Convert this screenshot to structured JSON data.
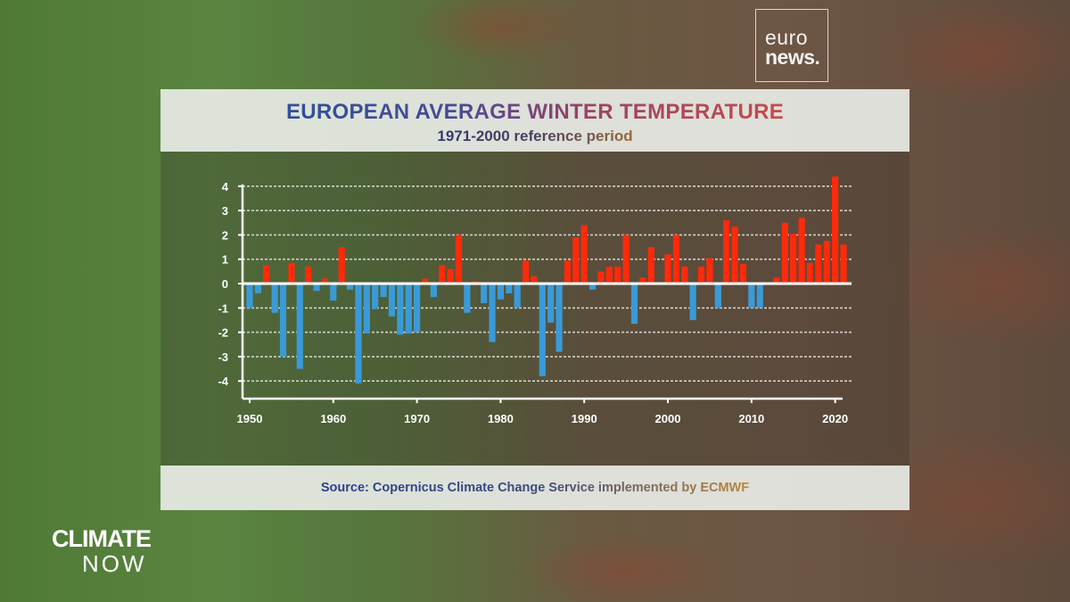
{
  "branding": {
    "network_logo": "euronews.",
    "network_logo_line1": "euro",
    "network_logo_line2": "news.",
    "show_logo_line1": "CLIMATE",
    "show_logo_line2": "NOW"
  },
  "header": {
    "title": "EUROPEAN AVERAGE WINTER TEMPERATURE",
    "subtitle": "1971-2000 reference period"
  },
  "footer": {
    "source": "Source: Copernicus Climate Change Service implemented by ECMWF"
  },
  "colors": {
    "positive": "#ff2a0a",
    "negative": "#3a9ad8",
    "grid": "#e6e6e6"
  },
  "chart_data": {
    "type": "bar",
    "title": "EUROPEAN AVERAGE WINTER TEMPERATURE",
    "subtitle": "1971-2000 reference period",
    "xlabel": "",
    "ylabel": "",
    "ylim": [
      -4.5,
      4.5
    ],
    "yticks": [
      -4,
      -3,
      -2,
      -1,
      0,
      1,
      2,
      3,
      4
    ],
    "xticks": [
      1950,
      1960,
      1970,
      1980,
      1990,
      2000,
      2010,
      2020
    ],
    "grid": "horizontal dashed",
    "x": [
      1950,
      1951,
      1952,
      1953,
      1954,
      1955,
      1956,
      1957,
      1958,
      1959,
      1960,
      1961,
      1962,
      1963,
      1964,
      1965,
      1966,
      1967,
      1968,
      1969,
      1970,
      1971,
      1972,
      1973,
      1974,
      1975,
      1976,
      1977,
      1978,
      1979,
      1980,
      1981,
      1982,
      1983,
      1984,
      1985,
      1986,
      1987,
      1988,
      1989,
      1990,
      1991,
      1992,
      1993,
      1994,
      1995,
      1996,
      1997,
      1998,
      1999,
      2000,
      2001,
      2002,
      2003,
      2004,
      2005,
      2006,
      2007,
      2008,
      2009,
      2010,
      2011,
      2012,
      2013,
      2014,
      2015,
      2016,
      2017,
      2018,
      2019,
      2020,
      2021
    ],
    "values": [
      -1.0,
      -0.4,
      0.75,
      -1.2,
      -3.0,
      0.85,
      -3.5,
      0.7,
      -0.3,
      0.2,
      -0.7,
      1.5,
      -0.25,
      -4.1,
      -2.05,
      -1.05,
      -0.55,
      -1.35,
      -2.1,
      -2.05,
      -2.0,
      0.2,
      -0.55,
      0.75,
      0.6,
      2.0,
      -1.2,
      0.1,
      -0.8,
      -2.4,
      -0.65,
      -0.4,
      -1.0,
      0.95,
      0.3,
      -3.8,
      -1.6,
      -2.8,
      0.95,
      1.9,
      2.4,
      -0.25,
      0.5,
      0.7,
      0.7,
      2.0,
      -1.65,
      0.25,
      1.5,
      0.05,
      1.2,
      2.0,
      0.7,
      -1.5,
      0.7,
      1.05,
      -1.0,
      2.6,
      2.35,
      0.8,
      -1.0,
      -1.0,
      0.05,
      0.25,
      2.5,
      2.05,
      2.7,
      0.85,
      1.6,
      1.75,
      4.4,
      1.6
    ]
  }
}
